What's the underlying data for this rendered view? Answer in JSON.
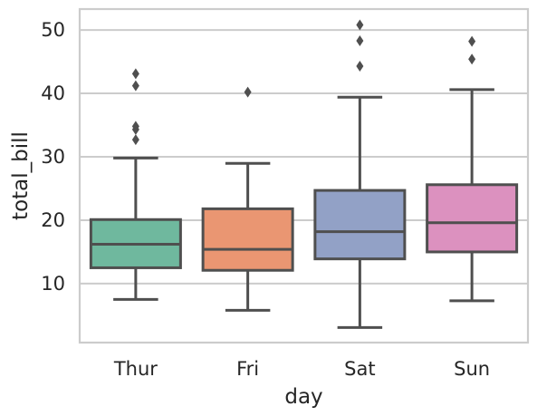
{
  "chart_data": {
    "type": "box",
    "xlabel": "day",
    "ylabel": "total_bill",
    "categories": [
      "Thur",
      "Fri",
      "Sat",
      "Sun"
    ],
    "ylim": [
      0.7,
      53.3
    ],
    "yticks": [
      10,
      20,
      30,
      40,
      50
    ],
    "grid": true,
    "boxes": [
      {
        "category": "Thur",
        "whisker_low": 7.5,
        "q1": 12.5,
        "median": 16.2,
        "q3": 20.1,
        "whisker_high": 29.8,
        "outliers": [
          32.7,
          34.3,
          34.8,
          41.2,
          43.1
        ],
        "color": "#6fb89e"
      },
      {
        "category": "Fri",
        "whisker_low": 5.8,
        "q1": 12.1,
        "median": 15.4,
        "q3": 21.8,
        "whisker_high": 28.97,
        "outliers": [
          40.2
        ],
        "color": "#ea9672"
      },
      {
        "category": "Sat",
        "whisker_low": 3.07,
        "q1": 13.9,
        "median": 18.2,
        "q3": 24.7,
        "whisker_high": 39.4,
        "outliers": [
          44.3,
          48.3,
          50.8
        ],
        "color": "#92a1c6"
      },
      {
        "category": "Sun",
        "whisker_low": 7.3,
        "q1": 15.0,
        "median": 19.6,
        "q3": 25.6,
        "whisker_high": 40.6,
        "outliers": [
          45.4,
          48.2
        ],
        "color": "#dc91bf"
      }
    ],
    "style": {
      "line_color": "#4f4f4f",
      "grid_color": "#cccccc",
      "spine_color": "#cccccc"
    }
  }
}
